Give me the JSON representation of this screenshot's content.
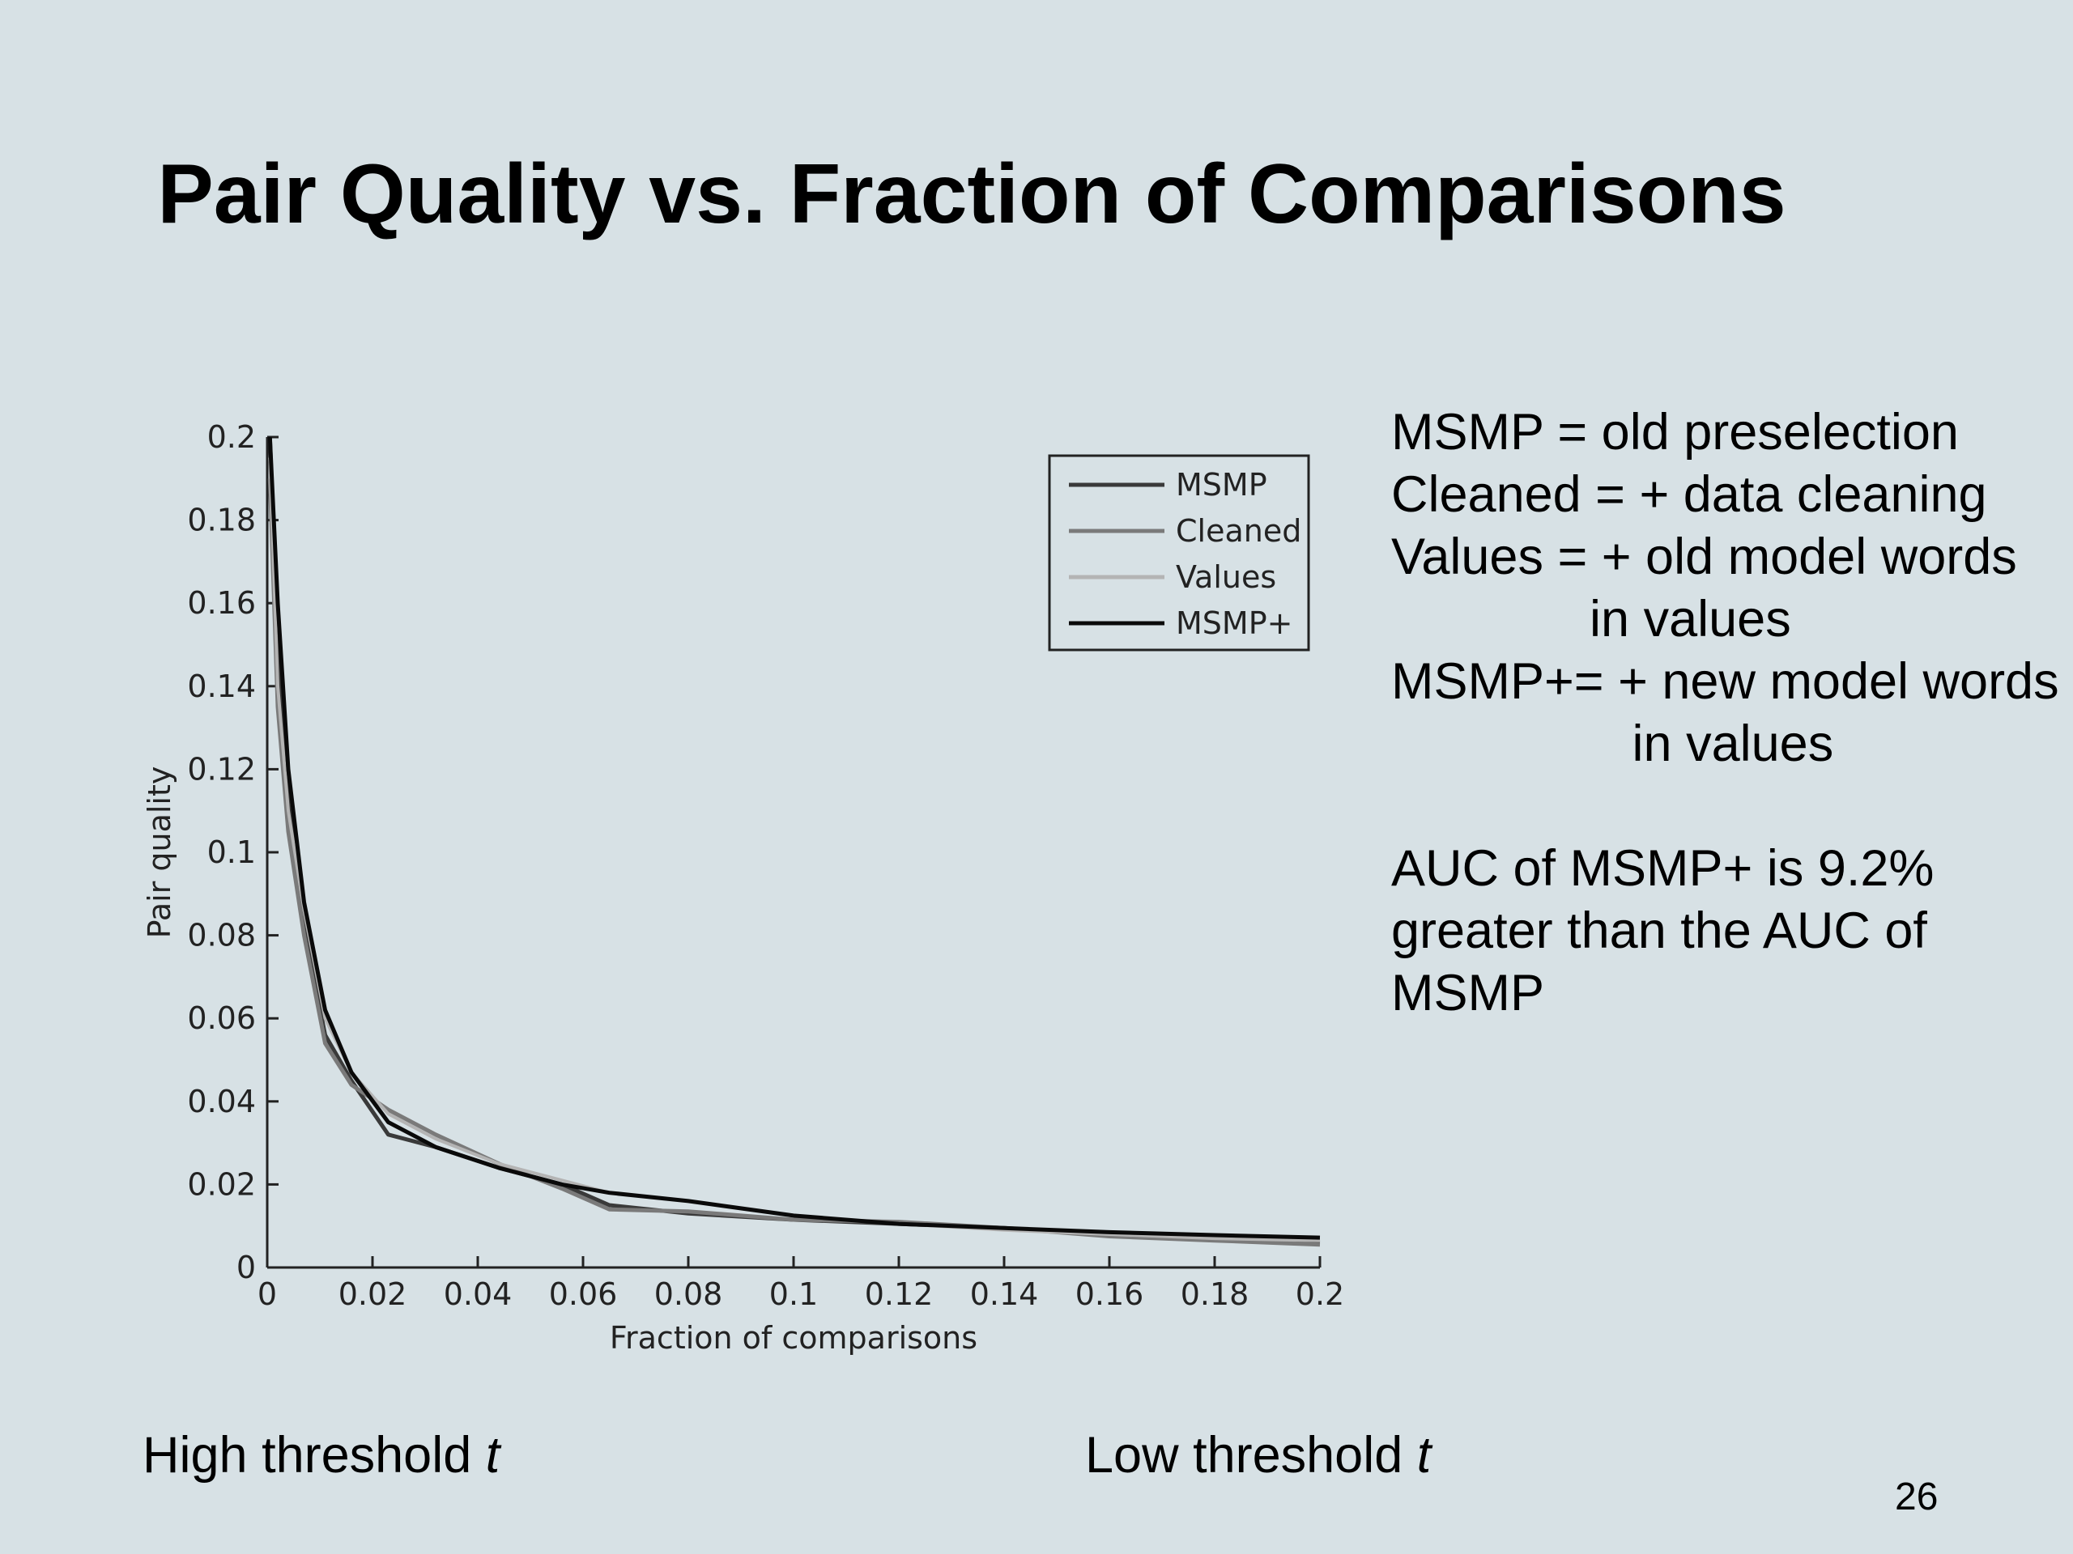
{
  "slide": {
    "title": "Pair Quality vs. Fraction of Comparisons",
    "page_number": "26",
    "notes": [
      "MSMP = old preselection",
      "Cleaned = + data cleaning",
      "Values = + old model words",
      "              in values",
      "MSMP+= + new model words",
      "                 in values"
    ],
    "auc_note": [
      "AUC of MSMP+ is 9.2%",
      "greater than the AUC of",
      "MSMP"
    ],
    "high_threshold": {
      "text": "High threshold ",
      "var": "t"
    },
    "low_threshold": {
      "text": "Low threshold ",
      "var": "t"
    }
  },
  "chart_data": {
    "type": "line",
    "title": "",
    "xlabel": "Fraction of comparisons",
    "ylabel": "Pair quality",
    "xlim": [
      0,
      0.2
    ],
    "ylim": [
      0,
      0.2
    ],
    "xticks": [
      "0",
      "0.02",
      "0.04",
      "0.06",
      "0.08",
      "0.1",
      "0.12",
      "0.14",
      "0.16",
      "0.18",
      "0.2"
    ],
    "yticks": [
      "0",
      "0.02",
      "0.04",
      "0.06",
      "0.08",
      "0.1",
      "0.12",
      "0.14",
      "0.16",
      "0.18",
      "0.2"
    ],
    "grid": false,
    "legend_position": "top-right",
    "series": [
      {
        "name": "MSMP",
        "color": "#3a3a3a",
        "x": [
          0.0005,
          0.002,
          0.004,
          0.007,
          0.011,
          0.016,
          0.023,
          0.032,
          0.044,
          0.056,
          0.065,
          0.08,
          0.1,
          0.12,
          0.14,
          0.16,
          0.18,
          0.2
        ],
        "y": [
          0.2,
          0.15,
          0.112,
          0.082,
          0.056,
          0.045,
          0.032,
          0.029,
          0.024,
          0.02,
          0.015,
          0.013,
          0.0115,
          0.0105,
          0.0095,
          0.008,
          0.007,
          0.006
        ]
      },
      {
        "name": "Cleaned",
        "color": "#7a7a7a",
        "x": [
          0.0005,
          0.002,
          0.004,
          0.007,
          0.011,
          0.016,
          0.023,
          0.032,
          0.044,
          0.056,
          0.065,
          0.08,
          0.1,
          0.12,
          0.14,
          0.16,
          0.18,
          0.2
        ],
        "y": [
          0.19,
          0.135,
          0.105,
          0.08,
          0.054,
          0.044,
          0.038,
          0.032,
          0.025,
          0.019,
          0.014,
          0.0135,
          0.0115,
          0.011,
          0.0095,
          0.0075,
          0.0065,
          0.0055
        ]
      },
      {
        "name": "Values",
        "color": "#b4b4b4",
        "x": [
          0.0005,
          0.002,
          0.004,
          0.007,
          0.011,
          0.016,
          0.023,
          0.032,
          0.044,
          0.056,
          0.065,
          0.08,
          0.1,
          0.12,
          0.14,
          0.16,
          0.18,
          0.2
        ],
        "y": [
          0.195,
          0.14,
          0.11,
          0.086,
          0.06,
          0.047,
          0.037,
          0.031,
          0.025,
          0.021,
          0.018,
          0.016,
          0.0125,
          0.0105,
          0.009,
          0.008,
          0.007,
          0.0065
        ]
      },
      {
        "name": "MSMP+",
        "color": "#0a0a0a",
        "x": [
          0.0005,
          0.002,
          0.004,
          0.007,
          0.011,
          0.016,
          0.023,
          0.032,
          0.044,
          0.056,
          0.065,
          0.08,
          0.1,
          0.12,
          0.14,
          0.16,
          0.18,
          0.2
        ],
        "y": [
          0.2,
          0.16,
          0.12,
          0.088,
          0.062,
          0.047,
          0.035,
          0.029,
          0.024,
          0.02,
          0.018,
          0.016,
          0.0125,
          0.0105,
          0.0095,
          0.0085,
          0.0078,
          0.0072
        ]
      }
    ]
  }
}
